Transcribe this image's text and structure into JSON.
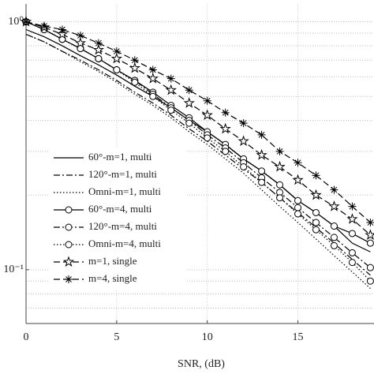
{
  "chart_data": {
    "type": "line",
    "xlabel": "SNR, (dB)",
    "log_y": true,
    "grid": true,
    "xlim": [
      0,
      19.2
    ],
    "ylim": [
      0.0607,
      1.18
    ],
    "xticks": [
      0,
      5,
      10,
      15
    ],
    "yticks": [
      {
        "value": 0.1,
        "label": "10⁻¹"
      },
      {
        "value": 1,
        "label": "10⁰"
      }
    ],
    "yminor_ticks": [
      0.07,
      0.08,
      0.09,
      0.2,
      0.3,
      0.4,
      0.5,
      0.6,
      0.7,
      0.8,
      0.9
    ],
    "x": [
      0,
      1,
      2,
      3,
      4,
      5,
      6,
      7,
      8,
      9,
      10,
      11,
      12,
      13,
      14,
      15,
      16,
      17,
      18,
      19
    ],
    "series": [
      {
        "name": "60°-m=1, multi",
        "color": "#000000",
        "dash": "solid",
        "values": [
          0.93,
          0.87,
          0.8,
          0.73,
          0.67,
          0.61,
          0.55,
          0.5,
          0.45,
          0.4,
          0.36,
          0.32,
          0.28,
          0.25,
          0.22,
          0.19,
          0.17,
          0.15,
          0.128,
          0.118
        ]
      },
      {
        "name": "120°-m=1, multi",
        "color": "#000000",
        "dash": "dashdot",
        "values": [
          0.89,
          0.83,
          0.76,
          0.7,
          0.64,
          0.58,
          0.52,
          0.47,
          0.42,
          0.37,
          0.33,
          0.29,
          0.255,
          0.225,
          0.195,
          0.17,
          0.148,
          0.128,
          0.11,
          0.095
        ]
      },
      {
        "name": "Omni-m=1, multi",
        "color": "#000000",
        "dash": "dotted",
        "values": [
          0.89,
          0.83,
          0.76,
          0.69,
          0.63,
          0.57,
          0.51,
          0.46,
          0.41,
          0.36,
          0.32,
          0.28,
          0.245,
          0.21,
          0.18,
          0.155,
          0.133,
          0.114,
          0.098,
          0.084
        ]
      },
      {
        "name": "60°-m=4, multi",
        "color": "#000000",
        "dash": "solid",
        "marker": "circle",
        "values": [
          1,
          0.93,
          0.85,
          0.78,
          0.71,
          0.64,
          0.58,
          0.52,
          0.46,
          0.41,
          0.36,
          0.32,
          0.28,
          0.25,
          0.22,
          0.19,
          0.17,
          0.15,
          0.14,
          0.128
        ]
      },
      {
        "name": "120°-m=4, multi",
        "color": "#000000",
        "dash": "dashdot",
        "marker": "circle",
        "values": [
          1,
          0.93,
          0.85,
          0.78,
          0.71,
          0.64,
          0.58,
          0.51,
          0.45,
          0.4,
          0.35,
          0.31,
          0.27,
          0.235,
          0.205,
          0.178,
          0.155,
          0.135,
          0.117,
          0.102
        ]
      },
      {
        "name": "Omni-m=4, multi",
        "color": "#000000",
        "dash": "dotted",
        "marker": "circle",
        "values": [
          1,
          0.93,
          0.85,
          0.78,
          0.71,
          0.64,
          0.57,
          0.5,
          0.44,
          0.39,
          0.34,
          0.3,
          0.26,
          0.225,
          0.195,
          0.168,
          0.145,
          0.125,
          0.107,
          0.09
        ]
      },
      {
        "name": "m=1, single",
        "color": "#000000",
        "dash": "dashed",
        "marker": "star",
        "values": [
          1,
          0.95,
          0.89,
          0.82,
          0.77,
          0.71,
          0.65,
          0.59,
          0.53,
          0.47,
          0.42,
          0.37,
          0.33,
          0.29,
          0.26,
          0.23,
          0.2,
          0.18,
          0.16,
          0.138
        ]
      },
      {
        "name": "m=4, single",
        "color": "#000000",
        "dash": "dashed",
        "marker": "asterisk",
        "values": [
          1,
          0.96,
          0.93,
          0.88,
          0.82,
          0.76,
          0.7,
          0.64,
          0.59,
          0.53,
          0.48,
          0.43,
          0.39,
          0.35,
          0.3,
          0.27,
          0.24,
          0.21,
          0.18,
          0.155
        ]
      }
    ]
  }
}
